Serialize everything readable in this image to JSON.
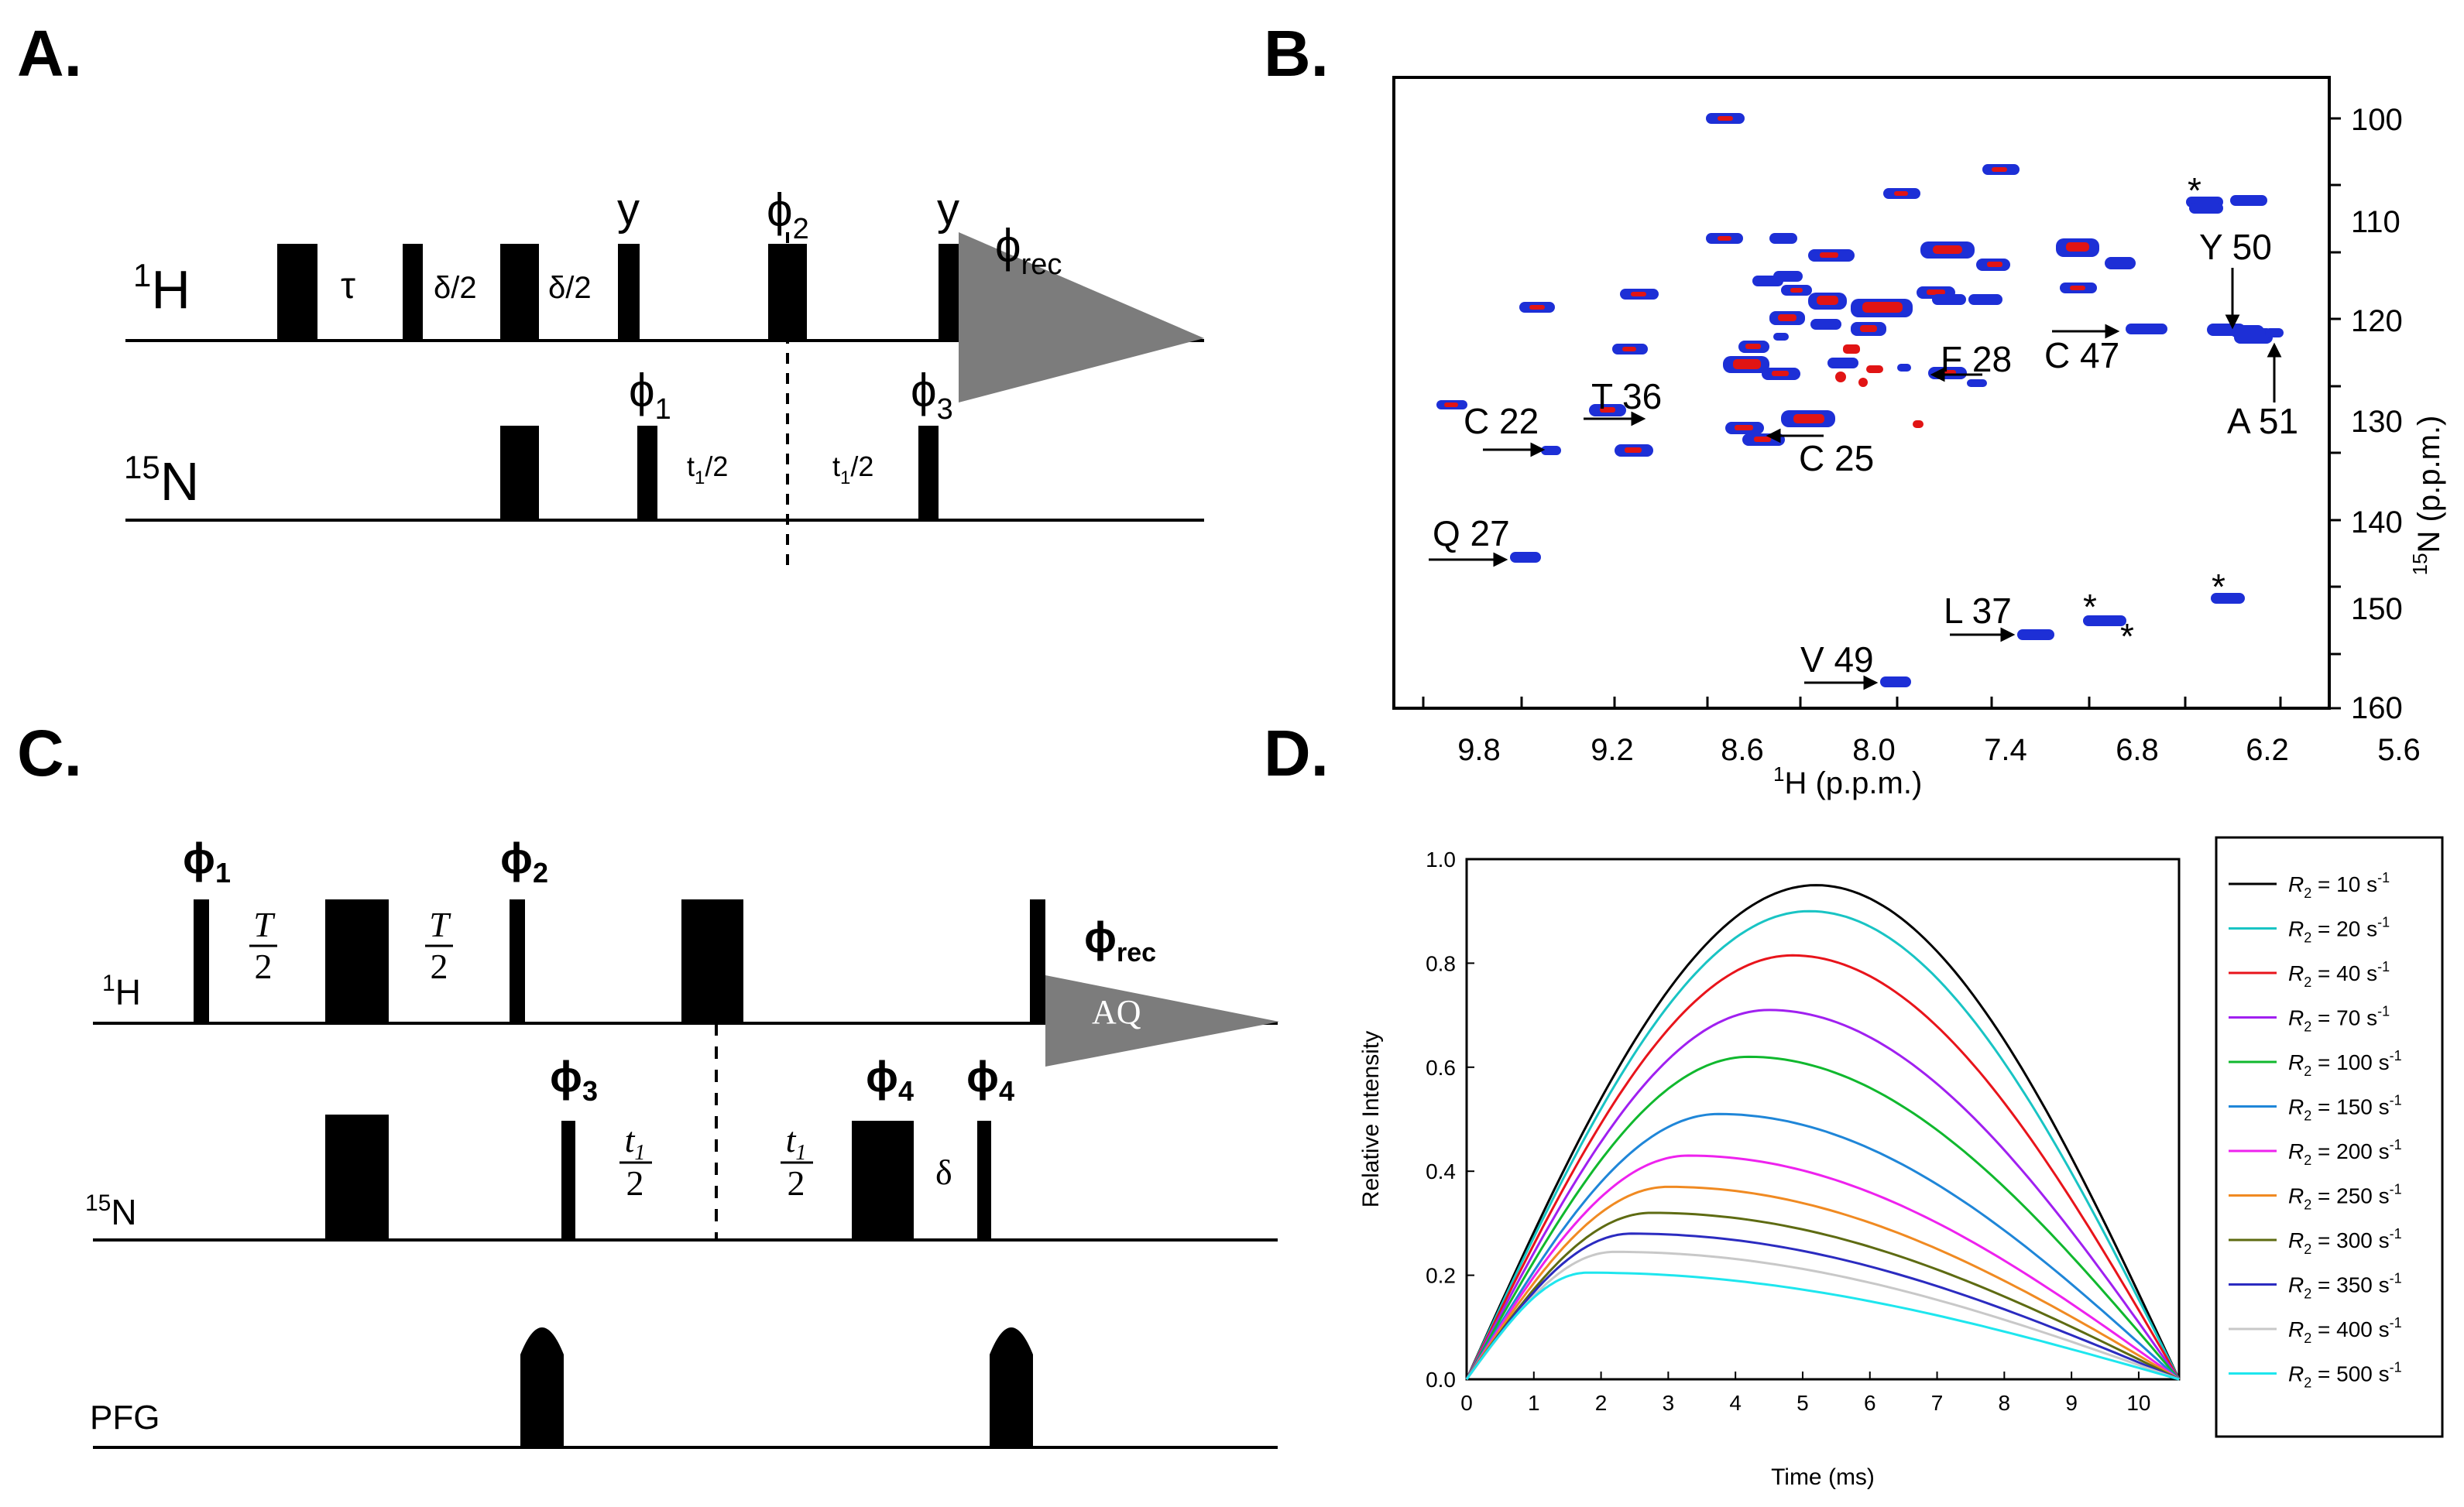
{
  "panels": {
    "a": {
      "label": "A.",
      "h_channel": {
        "label": "1H",
        "sup": "1",
        "base": "H"
      },
      "n_channel": {
        "label": "15N",
        "sup": "15",
        "base": "N"
      },
      "delay_tau": "τ",
      "delay_delta1": "δ/2",
      "delay_delta2": "δ/2",
      "phase_y1": "y",
      "phase_y2": "y",
      "phi2": {
        "base": "ϕ",
        "sub": "2"
      },
      "phirec": {
        "base": "ϕ",
        "sub": "rec"
      },
      "phi1": {
        "base": "ϕ",
        "sub": "1"
      },
      "phi3": {
        "base": "ϕ",
        "sub": "3"
      },
      "t1_left": {
        "base": "t",
        "sub": "1",
        "rest": "/2"
      },
      "t1_right": {
        "base": "t",
        "sub": "1",
        "rest": "/2"
      }
    },
    "b": {
      "label": "B.",
      "xlabel": {
        "sup": "1",
        "text": "H (p.p.m.)"
      },
      "ylabel": {
        "sup": "15",
        "text": "N (p.p.m.)"
      },
      "xticks": [
        "9.8",
        "9.2",
        "8.6",
        "8.0",
        "7.4",
        "6.8",
        "6.2",
        "5.6"
      ],
      "yticks": [
        "100",
        "110",
        "120",
        "130",
        "140",
        "150",
        "160"
      ],
      "assignments": [
        "C 22",
        "T 36",
        "C 25",
        "F 28",
        "C 47",
        "Y 50",
        "A 51",
        "Q 27",
        "L 37",
        "V 49"
      ],
      "star": "*"
    },
    "c": {
      "label": "C.",
      "h_channel": {
        "sup": "1",
        "base": "H"
      },
      "n_channel": {
        "sup": "15",
        "base": "N"
      },
      "pfg_label": "PFG",
      "phi1": {
        "base": "ϕ",
        "sub": "1"
      },
      "phi2": {
        "base": "ϕ",
        "sub": "2"
      },
      "phi3": {
        "base": "ϕ",
        "sub": "3"
      },
      "phi4a": {
        "base": "ϕ",
        "sub": "4"
      },
      "phi4b": {
        "base": "ϕ",
        "sub": "4"
      },
      "phirec": {
        "base": "ϕ",
        "sub": "rec"
      },
      "acq_label": "AQ",
      "frac_T": {
        "num": "T",
        "den": "2"
      },
      "frac_t1": {
        "num": "t",
        "num_sub": "1",
        "den": "2"
      },
      "delta": "δ"
    },
    "d": {
      "label": "D.",
      "legend_title_part": "R",
      "legend_sub": "2",
      "legend_unit": "s",
      "legend_unit_sup": "-1"
    }
  },
  "chart_data": {
    "type": "line",
    "title": "",
    "xlabel": "Time (ms)",
    "ylabel": "Relative Intensity",
    "xlim": [
      0,
      10.6
    ],
    "ylim": [
      0,
      1.0
    ],
    "xticks": [
      0,
      1,
      2,
      3,
      4,
      5,
      6,
      7,
      8,
      9,
      10
    ],
    "yticks": [
      0.0,
      0.2,
      0.4,
      0.6,
      0.8,
      1.0
    ],
    "legend_position": "right",
    "series": [
      {
        "name": "R2 = 10 s-1",
        "r2": 10,
        "label_value": "10",
        "color": "#000000",
        "peak_x": 5.2,
        "peak_y": 0.95
      },
      {
        "name": "R2 = 20 s-1",
        "r2": 20,
        "label_value": "20",
        "color": "#19c4c4",
        "peak_x": 5.1,
        "peak_y": 0.9
      },
      {
        "name": "R2 = 40 s-1",
        "r2": 40,
        "label_value": "40",
        "color": "#e8141b",
        "peak_x": 4.85,
        "peak_y": 0.815
      },
      {
        "name": "R2 = 70 s-1",
        "r2": 70,
        "label_value": "70",
        "color": "#a020f0",
        "peak_x": 4.5,
        "peak_y": 0.71
      },
      {
        "name": "R2 = 100 s-1",
        "r2": 100,
        "label_value": "100",
        "color": "#10b82e",
        "peak_x": 4.2,
        "peak_y": 0.62
      },
      {
        "name": "R2 = 150 s-1",
        "r2": 150,
        "label_value": "150",
        "color": "#1f86d8",
        "peak_x": 3.75,
        "peak_y": 0.51
      },
      {
        "name": "R2 = 200 s-1",
        "r2": 200,
        "label_value": "200",
        "color": "#ee22ee",
        "peak_x": 3.3,
        "peak_y": 0.43
      },
      {
        "name": "R2 = 250 s-1",
        "r2": 250,
        "label_value": "250",
        "color": "#f08a22",
        "peak_x": 3.0,
        "peak_y": 0.37
      },
      {
        "name": "R2 = 300 s-1",
        "r2": 300,
        "label_value": "300",
        "color": "#5e6b12",
        "peak_x": 2.75,
        "peak_y": 0.32
      },
      {
        "name": "R2 = 350 s-1",
        "r2": 350,
        "label_value": "350",
        "color": "#2b2bc0",
        "peak_x": 2.45,
        "peak_y": 0.28
      },
      {
        "name": "R2 = 400 s-1",
        "r2": 400,
        "label_value": "400",
        "color": "#c8c8c8",
        "peak_x": 2.2,
        "peak_y": 0.245
      },
      {
        "name": "R2 = 500 s-1",
        "r2": 500,
        "label_value": "500",
        "color": "#1ee6ee",
        "peak_x": 1.8,
        "peak_y": 0.205
      }
    ]
  }
}
